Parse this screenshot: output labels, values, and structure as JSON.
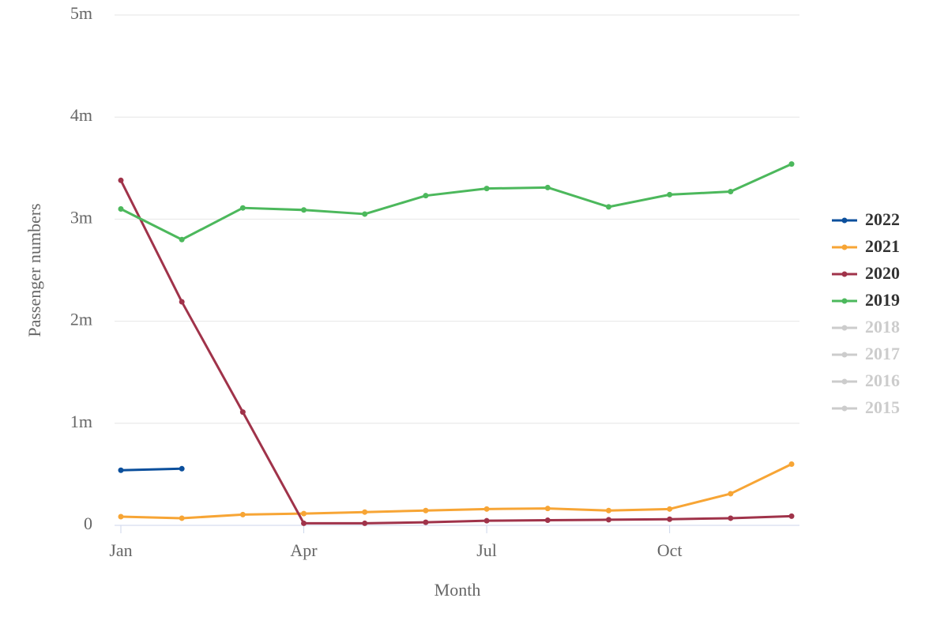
{
  "chart_data": {
    "type": "line",
    "xlabel": "Month",
    "ylabel": "Passenger numbers",
    "categories": [
      "Jan",
      null,
      null,
      "Apr",
      null,
      null,
      "Jul",
      null,
      null,
      "Oct",
      null,
      null
    ],
    "ylim": [
      0,
      5000000
    ],
    "yticks": [
      0,
      {
        "value": 1000000,
        "label": "1m"
      },
      {
        "value": 2000000,
        "label": "2m"
      },
      {
        "value": 3000000,
        "label": "3m"
      },
      {
        "value": 4000000,
        "label": "4m"
      },
      {
        "value": 5000000,
        "label": "5m"
      }
    ],
    "grid": true,
    "legend": "right",
    "series": [
      {
        "name": "2022",
        "color": "#0b4f9c",
        "visible": true,
        "values": [
          540000,
          555000,
          null,
          null,
          null,
          null,
          null,
          null,
          null,
          null,
          null,
          null
        ]
      },
      {
        "name": "2021",
        "color": "#f7a535",
        "visible": true,
        "values": [
          85000,
          70000,
          105000,
          115000,
          130000,
          145000,
          160000,
          165000,
          145000,
          160000,
          310000,
          600000
        ]
      },
      {
        "name": "2020",
        "color": "#a0334a",
        "visible": true,
        "values": [
          3380000,
          2190000,
          1110000,
          20000,
          20000,
          30000,
          45000,
          50000,
          55000,
          60000,
          70000,
          90000
        ]
      },
      {
        "name": "2019",
        "color": "#4cb85c",
        "visible": true,
        "values": [
          3100000,
          2800000,
          3110000,
          3090000,
          3050000,
          3230000,
          3300000,
          3310000,
          3120000,
          3240000,
          3270000,
          3540000
        ]
      },
      {
        "name": "2018",
        "color": "#cccccc",
        "visible": false,
        "values": [
          null,
          null,
          null,
          null,
          null,
          null,
          null,
          null,
          null,
          null,
          null,
          null
        ]
      },
      {
        "name": "2017",
        "color": "#cccccc",
        "visible": false,
        "values": [
          null,
          null,
          null,
          null,
          null,
          null,
          null,
          null,
          null,
          null,
          null,
          null
        ]
      },
      {
        "name": "2016",
        "color": "#cccccc",
        "visible": false,
        "values": [
          null,
          null,
          null,
          null,
          null,
          null,
          null,
          null,
          null,
          null,
          null,
          null
        ]
      },
      {
        "name": "2015",
        "color": "#cccccc",
        "visible": false,
        "values": [
          null,
          null,
          null,
          null,
          null,
          null,
          null,
          null,
          null,
          null,
          null,
          null
        ]
      }
    ]
  }
}
